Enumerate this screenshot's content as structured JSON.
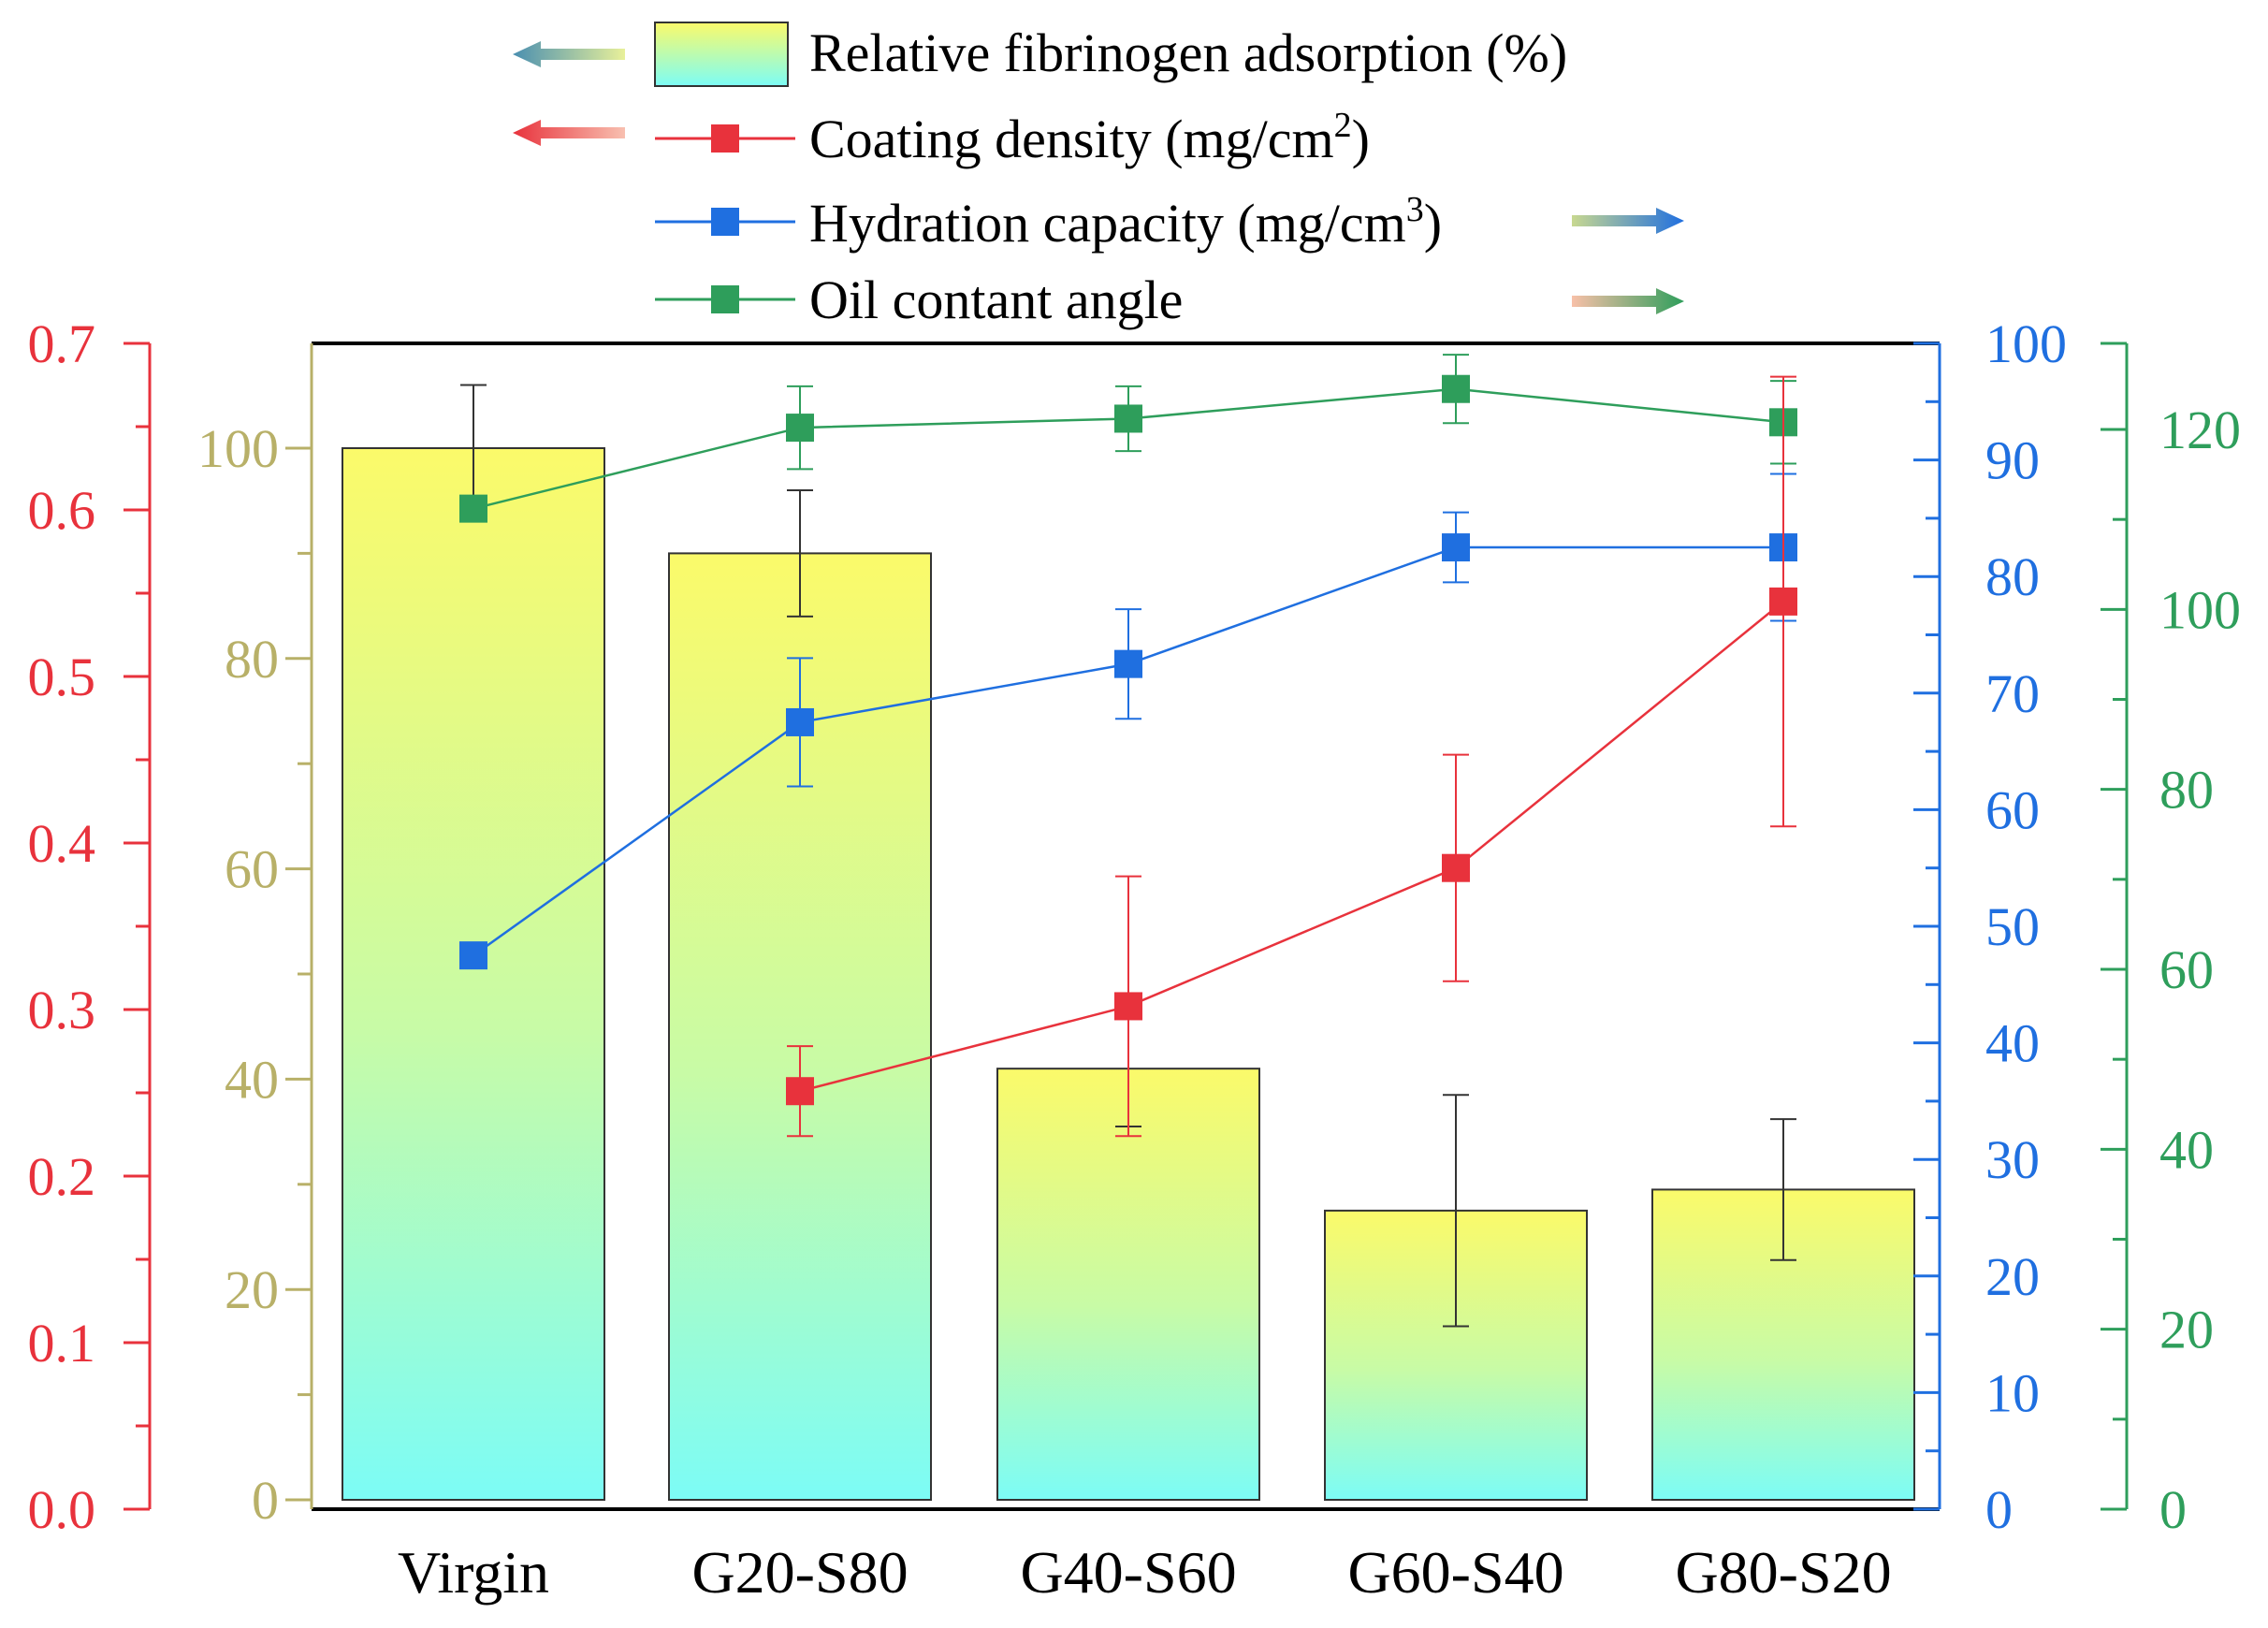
{
  "chart_data": {
    "type": "bar+line",
    "categories": [
      "Virgin",
      "G20-S80",
      "G40-S60",
      "G60-S40",
      "G80-S20"
    ],
    "series": [
      {
        "name": "Relative fibrinogen adsorption (%)",
        "kind": "bar",
        "axis": "fibrinogen",
        "values": [
          100,
          90,
          41,
          27.5,
          29.5
        ],
        "errors": [
          6,
          6,
          5.5,
          11,
          6.7
        ]
      },
      {
        "name": "Coating density (mg/cm2)",
        "kind": "line",
        "axis": "coating",
        "color": "#e8323c",
        "values": [
          null,
          0.251,
          0.302,
          0.385,
          0.545
        ],
        "errors": [
          null,
          0.027,
          0.078,
          0.068,
          0.135
        ]
      },
      {
        "name": "Hydration capacity (mg/cm3)",
        "kind": "line",
        "axis": "hydration",
        "color": "#1f6fe0",
        "values": [
          null,
          67.5,
          72.5,
          82.5,
          82.5
        ],
        "errors": [
          null,
          5.5,
          4.7,
          3,
          6.3
        ]
      },
      {
        "name": "Oil contant angle",
        "kind": "line",
        "axis": "oil",
        "color": "#2e9e5b",
        "values": [
          111.2,
          120.2,
          121.2,
          124.5,
          120.8
        ],
        "errors": [
          null,
          4.6,
          3.6,
          3.8,
          4.6
        ]
      }
    ],
    "virgin_hydration": 47.5,
    "axes": {
      "coating": {
        "range": [
          0,
          0.7
        ],
        "ticks": [
          "0.0",
          "0.1",
          "0.2",
          "0.3",
          "0.4",
          "0.5",
          "0.6",
          "0.7"
        ],
        "color": "#e8323c"
      },
      "fibrinogen": {
        "range": [
          0,
          110
        ],
        "ticks": [
          "0",
          "20",
          "40",
          "60",
          "80",
          "100"
        ],
        "color": "#b8b068"
      },
      "hydration": {
        "range": [
          0,
          100
        ],
        "ticks": [
          "0",
          "10",
          "20",
          "30",
          "40",
          "50",
          "60",
          "70",
          "80",
          "90",
          "100"
        ],
        "color": "#1f6fe0"
      },
      "oil": {
        "range": [
          0,
          130
        ],
        "ticks": [
          "0",
          "20",
          "40",
          "60",
          "80",
          "100",
          "120"
        ],
        "color": "#2e9e5b"
      }
    },
    "legend": {
      "fibrinogen_label": "Relative fibrinogen adsorption (%)",
      "coating_label": "Coating density (mg/cm",
      "coating_sup": "2",
      "coating_close": ")",
      "hydration_label": "Hydration capacity (mg/cm",
      "hydration_sup": "3",
      "hydration_close": ")",
      "oil_label": "Oil contant angle"
    }
  }
}
